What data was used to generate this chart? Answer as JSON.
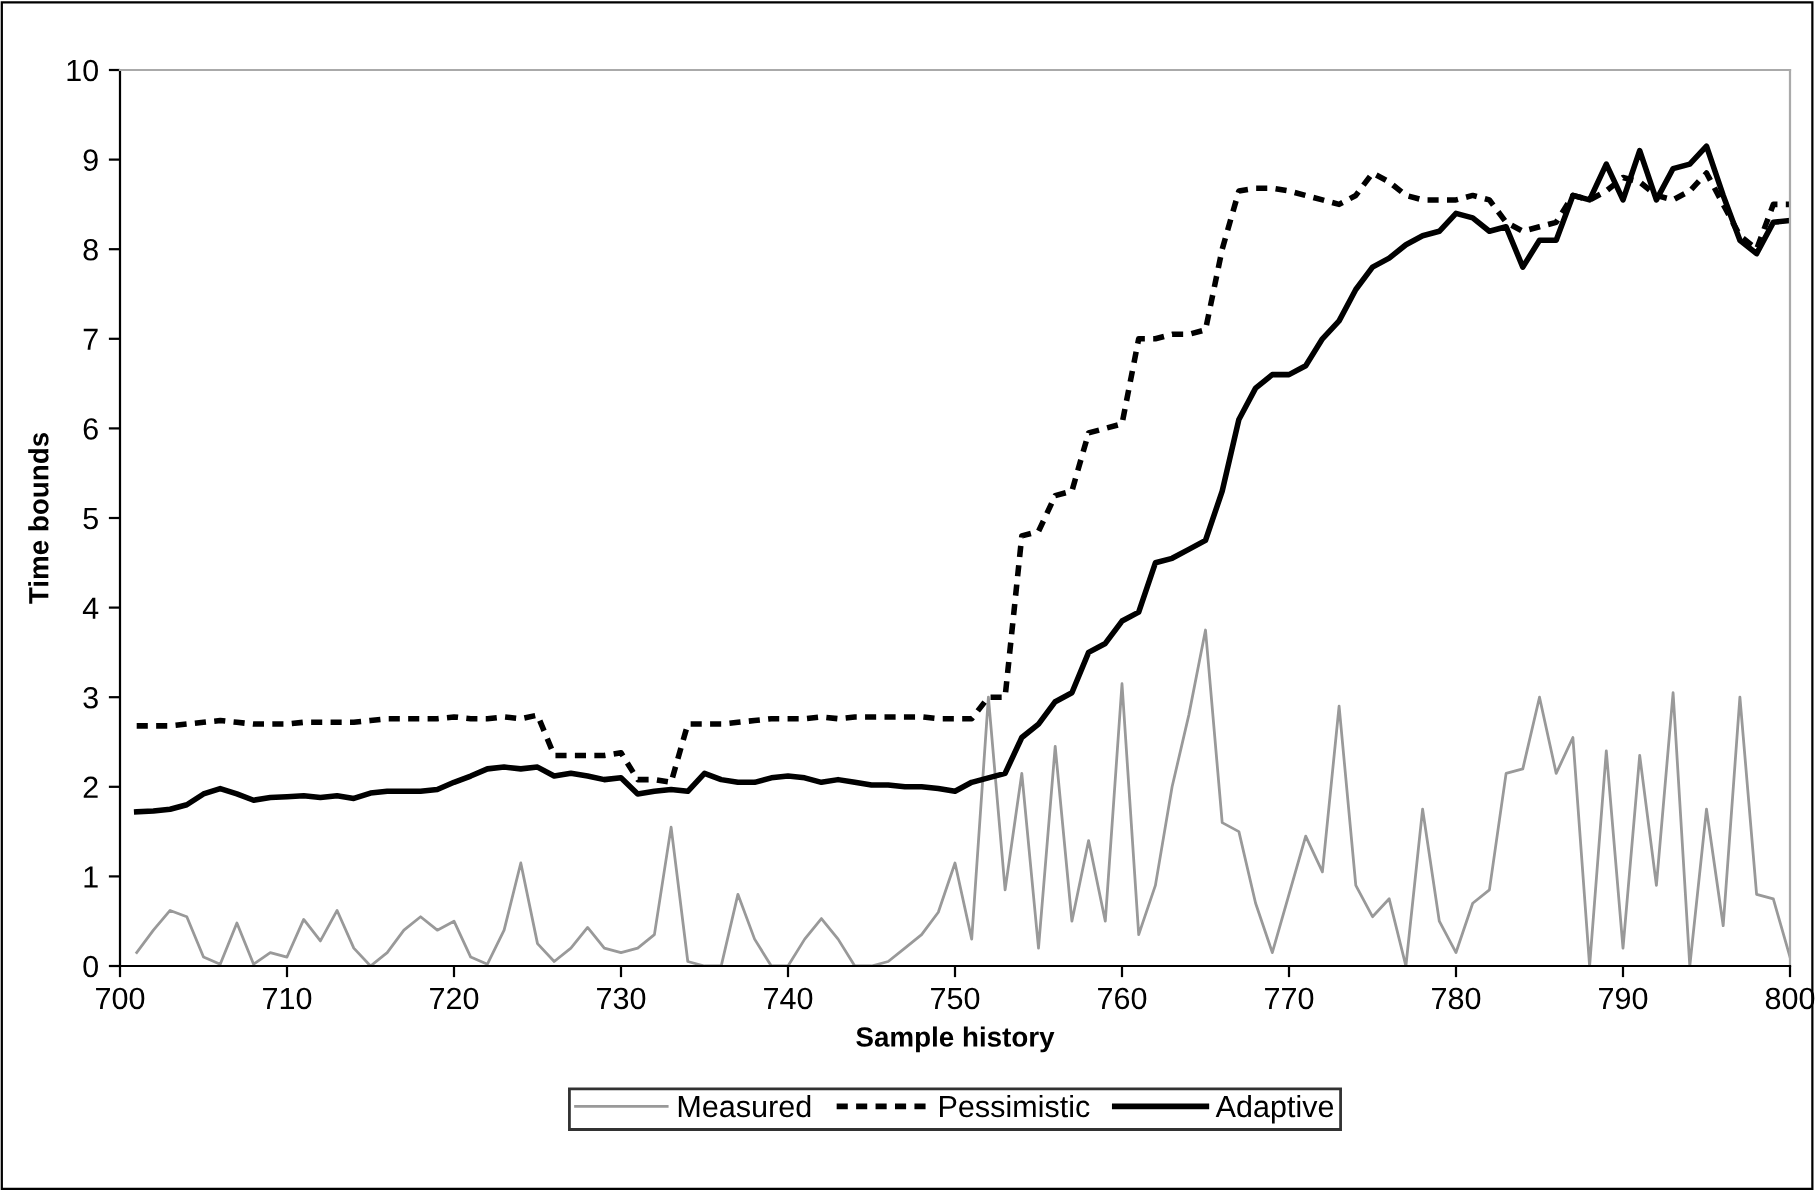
{
  "chart_data": {
    "type": "line",
    "xlabel": "Sample history",
    "ylabel": "Time bounds",
    "x": [
      701,
      702,
      703,
      704,
      705,
      706,
      707,
      708,
      709,
      710,
      711,
      712,
      713,
      714,
      715,
      716,
      717,
      718,
      719,
      720,
      721,
      722,
      723,
      724,
      725,
      726,
      727,
      728,
      729,
      730,
      731,
      732,
      733,
      734,
      735,
      736,
      737,
      738,
      739,
      740,
      741,
      742,
      743,
      744,
      745,
      746,
      747,
      748,
      749,
      750,
      751,
      752,
      753,
      754,
      755,
      756,
      757,
      758,
      759,
      760,
      761,
      762,
      763,
      764,
      765,
      766,
      767,
      768,
      769,
      770,
      771,
      772,
      773,
      774,
      775,
      776,
      777,
      778,
      779,
      780,
      781,
      782,
      783,
      784,
      785,
      786,
      787,
      788,
      789,
      790,
      791,
      792,
      793,
      794,
      795,
      796,
      797,
      798,
      799,
      800
    ],
    "xlim": [
      700,
      800
    ],
    "xticks": [
      700,
      710,
      720,
      730,
      740,
      750,
      760,
      770,
      780,
      790,
      800
    ],
    "ylim": [
      0,
      10
    ],
    "yticks": [
      0,
      1,
      2,
      3,
      4,
      5,
      6,
      7,
      8,
      9,
      10
    ],
    "grid": false,
    "legend": "bottom",
    "marker": "none",
    "series": [
      {
        "name": "Measured",
        "color": "#999999",
        "line_style": "solid",
        "values": [
          0.15,
          0.4,
          0.62,
          0.55,
          0.1,
          0.02,
          0.48,
          0.02,
          0.15,
          0.1,
          0.52,
          0.28,
          0.62,
          0.2,
          0,
          0.15,
          0.4,
          0.55,
          0.4,
          0.5,
          0.1,
          0.02,
          0.4,
          1.15,
          0.25,
          0.05,
          0.2,
          0.43,
          0.2,
          0.15,
          0.2,
          0.35,
          1.55,
          0.05,
          0,
          0,
          0.8,
          0.3,
          0,
          0,
          0.3,
          0.53,
          0.3,
          0,
          0,
          0.05,
          0.2,
          0.35,
          0.6,
          1.15,
          0.3,
          3.0,
          0.85,
          2.15,
          0.2,
          2.45,
          0.5,
          1.4,
          0.5,
          3.15,
          0.35,
          0.9,
          2.0,
          2.8,
          3.75,
          1.6,
          1.5,
          0.7,
          0.15,
          0.8,
          1.45,
          1.05,
          2.9,
          0.9,
          0.55,
          0.75,
          0,
          1.75,
          0.5,
          0.15,
          0.7,
          0.85,
          2.15,
          2.2,
          3.0,
          2.15,
          2.55,
          0,
          2.4,
          0.2,
          2.35,
          0.9,
          3.05,
          0,
          1.75,
          0.45,
          3.0,
          0.8,
          0.75,
          0.1
        ]
      },
      {
        "name": "Pessimistic",
        "color": "#000000",
        "line_style": "dotted",
        "values": [
          2.68,
          2.68,
          2.68,
          2.7,
          2.72,
          2.74,
          2.72,
          2.7,
          2.7,
          2.7,
          2.72,
          2.72,
          2.72,
          2.72,
          2.74,
          2.76,
          2.76,
          2.76,
          2.76,
          2.78,
          2.76,
          2.76,
          2.78,
          2.76,
          2.8,
          2.35,
          2.35,
          2.35,
          2.35,
          2.38,
          2.08,
          2.08,
          2.05,
          2.7,
          2.7,
          2.7,
          2.72,
          2.74,
          2.76,
          2.76,
          2.76,
          2.78,
          2.76,
          2.78,
          2.78,
          2.78,
          2.78,
          2.78,
          2.76,
          2.76,
          2.76,
          3.0,
          3.0,
          4.8,
          4.85,
          5.25,
          5.3,
          5.95,
          6.0,
          6.05,
          7.0,
          7.0,
          7.05,
          7.05,
          7.1,
          8.0,
          8.65,
          8.68,
          8.68,
          8.65,
          8.6,
          8.55,
          8.5,
          8.6,
          8.85,
          8.75,
          8.6,
          8.55,
          8.55,
          8.55,
          8.6,
          8.55,
          8.3,
          8.2,
          8.25,
          8.3,
          8.6,
          8.55,
          8.65,
          8.8,
          8.75,
          8.6,
          8.55,
          8.65,
          8.85,
          8.5,
          8.15,
          8.0,
          8.5,
          8.5
        ]
      },
      {
        "name": "Adaptive",
        "color": "#000000",
        "line_style": "solid",
        "values": [
          1.72,
          1.73,
          1.75,
          1.8,
          1.92,
          1.98,
          1.92,
          1.85,
          1.88,
          1.89,
          1.9,
          1.88,
          1.9,
          1.87,
          1.93,
          1.95,
          1.95,
          1.95,
          1.97,
          2.05,
          2.12,
          2.2,
          2.22,
          2.2,
          2.22,
          2.12,
          2.15,
          2.12,
          2.08,
          2.1,
          1.92,
          1.95,
          1.97,
          1.95,
          2.15,
          2.08,
          2.05,
          2.05,
          2.1,
          2.12,
          2.1,
          2.05,
          2.08,
          2.05,
          2.02,
          2.02,
          2.0,
          2.0,
          1.98,
          1.95,
          2.05,
          2.1,
          2.15,
          2.55,
          2.7,
          2.95,
          3.05,
          3.5,
          3.6,
          3.85,
          3.95,
          4.5,
          4.55,
          4.65,
          4.75,
          5.3,
          6.1,
          6.45,
          6.6,
          6.6,
          6.7,
          7.0,
          7.2,
          7.55,
          7.8,
          7.9,
          8.05,
          8.15,
          8.2,
          8.4,
          8.35,
          8.2,
          8.25,
          7.8,
          8.1,
          8.1,
          8.6,
          8.55,
          8.95,
          8.55,
          9.1,
          8.55,
          8.9,
          8.95,
          9.15,
          8.6,
          8.1,
          7.95,
          8.3,
          8.32
        ]
      }
    ]
  }
}
